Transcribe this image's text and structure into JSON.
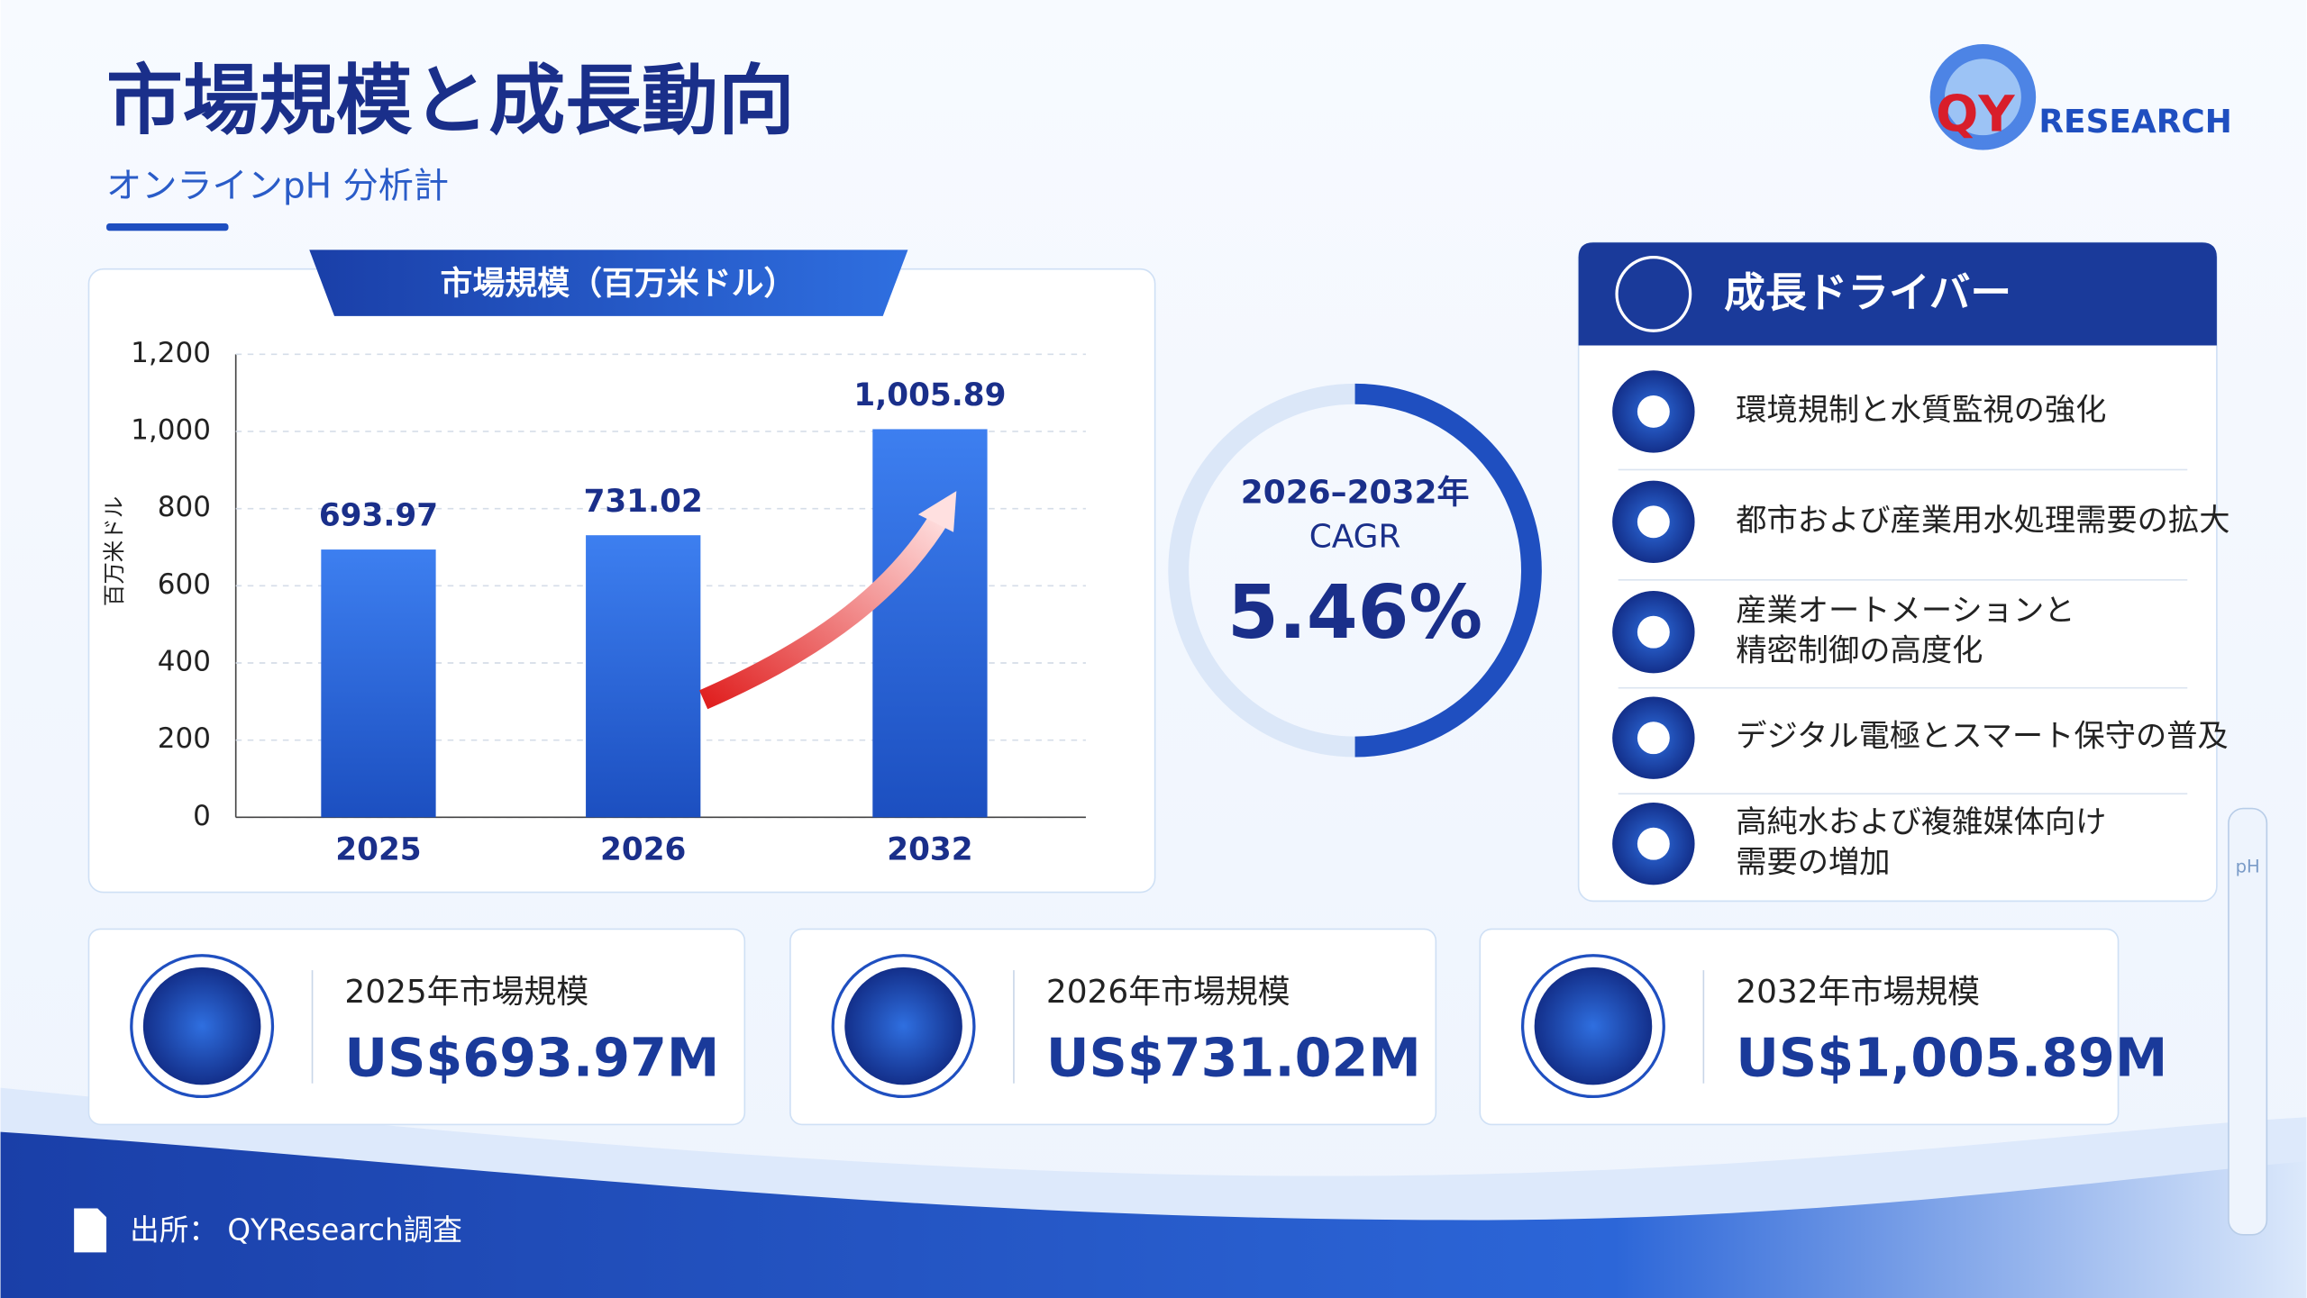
{
  "header": {
    "title": "市場規模と成長動向",
    "subtitle": "オンラインpH 分析計"
  },
  "logo": {
    "mark": "QY",
    "name": "RESEARCH"
  },
  "chart_data": {
    "type": "bar",
    "title": "市場規模（百万米ドル）",
    "y_label": "百万米ドル",
    "categories": [
      "2025",
      "2026",
      "2032"
    ],
    "values": [
      693.97,
      731.02,
      1005.89
    ],
    "value_labels": [
      "693.97",
      "731.02",
      "1,005.89"
    ],
    "color": "#2f6fe0",
    "ylim": [
      0,
      1200
    ],
    "yticks": [
      0,
      200,
      400,
      600,
      800,
      {
        "value": 1000,
        "label": "1,000"
      },
      {
        "value": 1200,
        "label": "1,200"
      }
    ],
    "grid": true
  },
  "cagr": {
    "period": "2026–2032年",
    "label": "CAGR",
    "value": "5.46%"
  },
  "drivers": {
    "title": "成長ドライバー",
    "items": [
      [
        "環境規制と水質監視の強化"
      ],
      [
        "都市および産業用水処理需要の拡大"
      ],
      [
        "産業オートメーションと",
        "精密制御の高度化"
      ],
      [
        "デジタル電極とスマート保守の普及"
      ],
      [
        "高純水および複雑媒体向け",
        "需要の増加"
      ]
    ]
  },
  "cards": [
    {
      "label": "2025年市場規模",
      "value": "US$693.97M"
    },
    {
      "label": "2026年市場規模",
      "value": "US$731.02M"
    },
    {
      "label": "2032年市場規模",
      "value": "US$1,005.89M"
    }
  ],
  "probe_label": "pH",
  "source": "出所： QYResearch調査"
}
